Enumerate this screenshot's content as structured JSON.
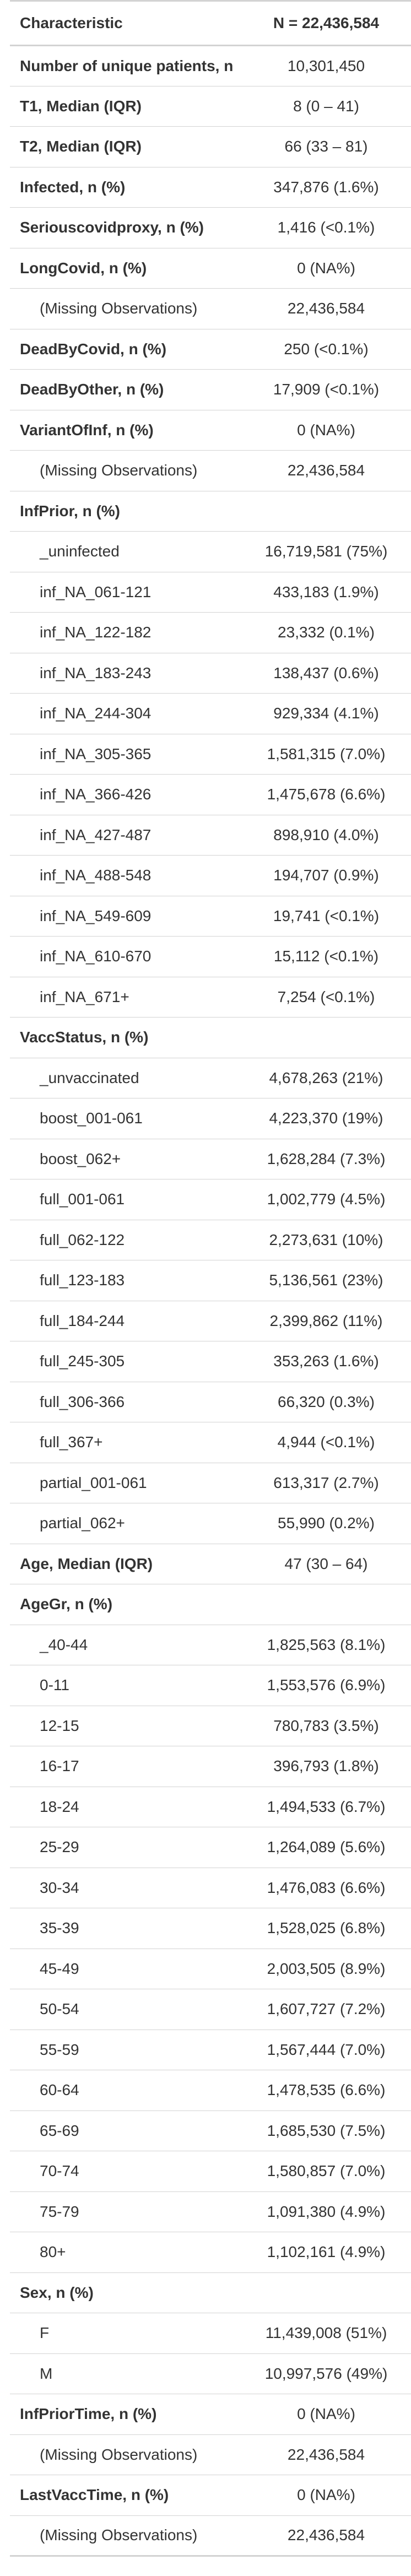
{
  "table": {
    "headers": [
      "Characteristic",
      "N = 22,436,584"
    ],
    "rows": [
      {
        "label": "Number of unique patients, n",
        "value": "10,301,450",
        "kind": "hdr"
      },
      {
        "label": "T1, Median (IQR)",
        "value": "8 (0 – 41)",
        "kind": "hdr"
      },
      {
        "label": "T2, Median (IQR)",
        "value": "66 (33 – 81)",
        "kind": "hdr"
      },
      {
        "label": "Infected, n (%)",
        "value": "347,876 (1.6%)",
        "kind": "hdr"
      },
      {
        "label": "Seriouscovidproxy, n (%)",
        "value": "1,416 (<0.1%)",
        "kind": "hdr"
      },
      {
        "label": "LongCovid, n (%)",
        "value": "0 (NA%)",
        "kind": "hdr"
      },
      {
        "label": "(Missing Observations)",
        "value": "22,436,584",
        "kind": "sub"
      },
      {
        "label": "DeadByCovid, n (%)",
        "value": "250 (<0.1%)",
        "kind": "hdr"
      },
      {
        "label": "DeadByOther, n (%)",
        "value": "17,909 (<0.1%)",
        "kind": "hdr"
      },
      {
        "label": "VariantOfInf, n (%)",
        "value": "0 (NA%)",
        "kind": "hdr"
      },
      {
        "label": "(Missing Observations)",
        "value": "22,436,584",
        "kind": "sub"
      },
      {
        "label": "InfPrior, n (%)",
        "value": "",
        "kind": "hdr"
      },
      {
        "label": "_uninfected",
        "value": "16,719,581 (75%)",
        "kind": "sub"
      },
      {
        "label": "inf_NA_061-121",
        "value": "433,183 (1.9%)",
        "kind": "sub"
      },
      {
        "label": "inf_NA_122-182",
        "value": "23,332 (0.1%)",
        "kind": "sub"
      },
      {
        "label": "inf_NA_183-243",
        "value": "138,437 (0.6%)",
        "kind": "sub"
      },
      {
        "label": "inf_NA_244-304",
        "value": "929,334 (4.1%)",
        "kind": "sub"
      },
      {
        "label": "inf_NA_305-365",
        "value": "1,581,315 (7.0%)",
        "kind": "sub"
      },
      {
        "label": "inf_NA_366-426",
        "value": "1,475,678 (6.6%)",
        "kind": "sub"
      },
      {
        "label": "inf_NA_427-487",
        "value": "898,910 (4.0%)",
        "kind": "sub"
      },
      {
        "label": "inf_NA_488-548",
        "value": "194,707 (0.9%)",
        "kind": "sub"
      },
      {
        "label": "inf_NA_549-609",
        "value": "19,741 (<0.1%)",
        "kind": "sub"
      },
      {
        "label": "inf_NA_610-670",
        "value": "15,112 (<0.1%)",
        "kind": "sub"
      },
      {
        "label": "inf_NA_671+",
        "value": "7,254 (<0.1%)",
        "kind": "sub"
      },
      {
        "label": "VaccStatus, n (%)",
        "value": "",
        "kind": "hdr"
      },
      {
        "label": "_unvaccinated",
        "value": "4,678,263 (21%)",
        "kind": "sub"
      },
      {
        "label": "boost_001-061",
        "value": "4,223,370 (19%)",
        "kind": "sub"
      },
      {
        "label": "boost_062+",
        "value": "1,628,284 (7.3%)",
        "kind": "sub"
      },
      {
        "label": "full_001-061",
        "value": "1,002,779 (4.5%)",
        "kind": "sub"
      },
      {
        "label": "full_062-122",
        "value": "2,273,631 (10%)",
        "kind": "sub"
      },
      {
        "label": "full_123-183",
        "value": "5,136,561 (23%)",
        "kind": "sub"
      },
      {
        "label": "full_184-244",
        "value": "2,399,862 (11%)",
        "kind": "sub"
      },
      {
        "label": "full_245-305",
        "value": "353,263 (1.6%)",
        "kind": "sub"
      },
      {
        "label": "full_306-366",
        "value": "66,320 (0.3%)",
        "kind": "sub"
      },
      {
        "label": "full_367+",
        "value": "4,944 (<0.1%)",
        "kind": "sub"
      },
      {
        "label": "partial_001-061",
        "value": "613,317 (2.7%)",
        "kind": "sub"
      },
      {
        "label": "partial_062+",
        "value": "55,990 (0.2%)",
        "kind": "sub"
      },
      {
        "label": "Age, Median (IQR)",
        "value": "47 (30 – 64)",
        "kind": "hdr"
      },
      {
        "label": "AgeGr, n (%)",
        "value": "",
        "kind": "hdr"
      },
      {
        "label": "_40-44",
        "value": "1,825,563 (8.1%)",
        "kind": "sub"
      },
      {
        "label": "0-11",
        "value": "1,553,576 (6.9%)",
        "kind": "sub"
      },
      {
        "label": "12-15",
        "value": "780,783 (3.5%)",
        "kind": "sub"
      },
      {
        "label": "16-17",
        "value": "396,793 (1.8%)",
        "kind": "sub"
      },
      {
        "label": "18-24",
        "value": "1,494,533 (6.7%)",
        "kind": "sub"
      },
      {
        "label": "25-29",
        "value": "1,264,089 (5.6%)",
        "kind": "sub"
      },
      {
        "label": "30-34",
        "value": "1,476,083 (6.6%)",
        "kind": "sub"
      },
      {
        "label": "35-39",
        "value": "1,528,025 (6.8%)",
        "kind": "sub"
      },
      {
        "label": "45-49",
        "value": "2,003,505 (8.9%)",
        "kind": "sub"
      },
      {
        "label": "50-54",
        "value": "1,607,727 (7.2%)",
        "kind": "sub"
      },
      {
        "label": "55-59",
        "value": "1,567,444 (7.0%)",
        "kind": "sub"
      },
      {
        "label": "60-64",
        "value": "1,478,535 (6.6%)",
        "kind": "sub"
      },
      {
        "label": "65-69",
        "value": "1,685,530 (7.5%)",
        "kind": "sub"
      },
      {
        "label": "70-74",
        "value": "1,580,857 (7.0%)",
        "kind": "sub"
      },
      {
        "label": "75-79",
        "value": "1,091,380 (4.9%)",
        "kind": "sub"
      },
      {
        "label": "80+",
        "value": "1,102,161 (4.9%)",
        "kind": "sub"
      },
      {
        "label": "Sex, n (%)",
        "value": "",
        "kind": "hdr"
      },
      {
        "label": "F",
        "value": "11,439,008 (51%)",
        "kind": "sub"
      },
      {
        "label": "M",
        "value": "10,997,576 (49%)",
        "kind": "sub"
      },
      {
        "label": "InfPriorTime, n (%)",
        "value": "0 (NA%)",
        "kind": "hdr"
      },
      {
        "label": "(Missing Observations)",
        "value": "22,436,584",
        "kind": "sub"
      },
      {
        "label": "LastVaccTime, n (%)",
        "value": "0 (NA%)",
        "kind": "hdr"
      },
      {
        "label": "(Missing Observations)",
        "value": "22,436,584",
        "kind": "sub"
      }
    ]
  }
}
